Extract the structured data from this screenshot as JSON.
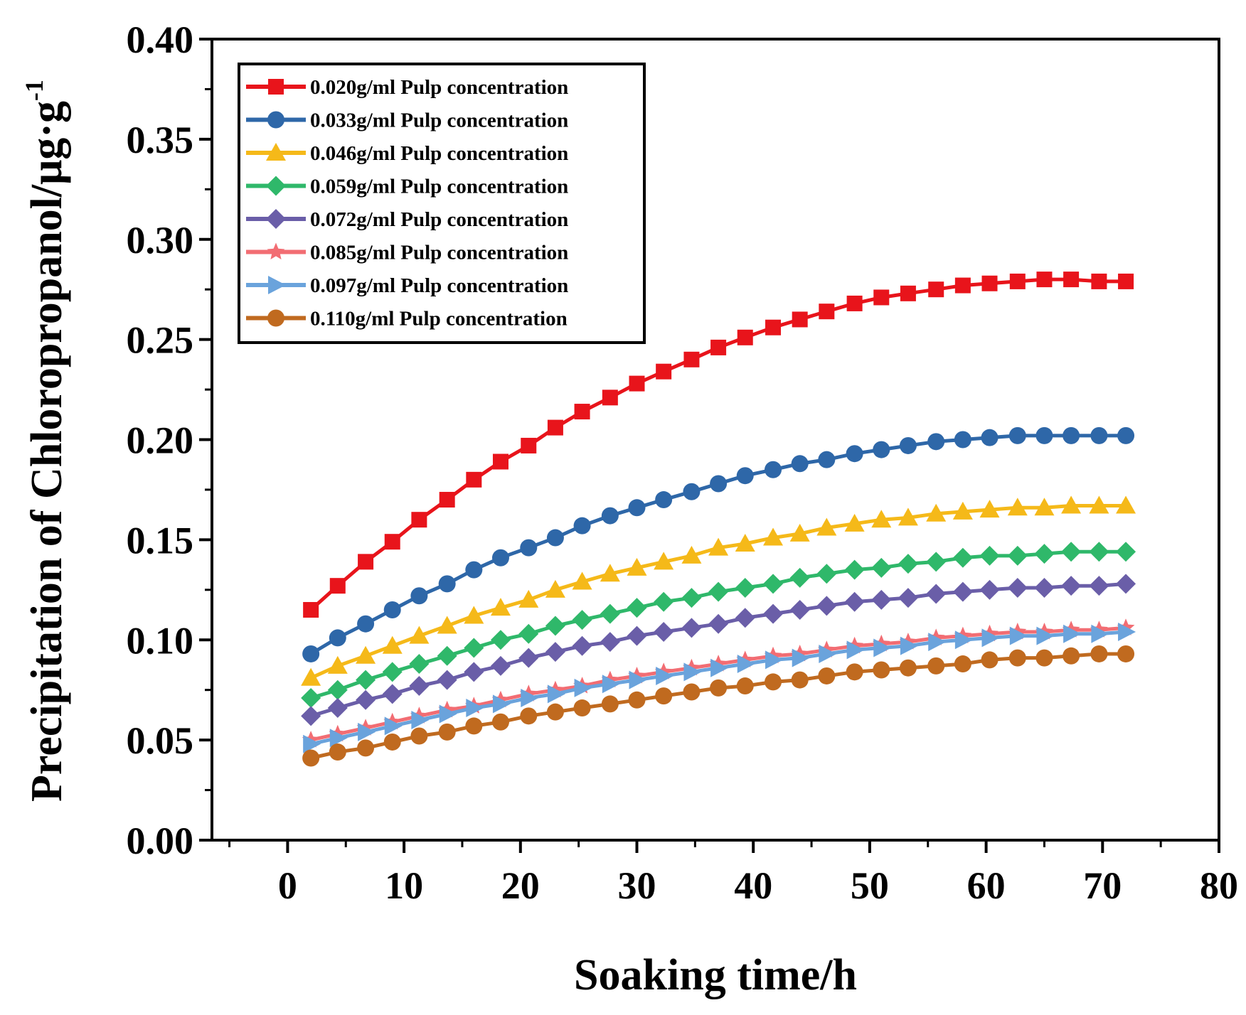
{
  "chart_data": {
    "type": "line",
    "title": "",
    "xlabel": "Soaking time/h",
    "ylabel": "Precipitation of Chloropropanol/μg·g",
    "ylabel_superscript": "-1",
    "xlim": [
      -6.5,
      80
    ],
    "ylim": [
      0,
      0.4
    ],
    "xticks": [
      "0",
      "10",
      "20",
      "30",
      "40",
      "50",
      "60",
      "70",
      "80"
    ],
    "yticks": [
      "0.00",
      "0.05",
      "0.10",
      "0.15",
      "0.20",
      "0.25",
      "0.30",
      "0.35",
      "0.40"
    ],
    "grid": false,
    "legend_position": "top-left",
    "x": [
      2,
      4.3,
      6.7,
      9,
      11.3,
      13.7,
      16,
      18.3,
      20.7,
      23,
      25.3,
      27.7,
      30,
      32.3,
      34.7,
      37,
      39.3,
      41.7,
      44,
      46.3,
      48.7,
      51,
      53.3,
      55.7,
      58,
      60.3,
      62.7,
      65,
      67.3,
      69.7,
      72
    ],
    "series": [
      {
        "name": "0.020g/ml Pulp concentration",
        "color": "#e8141b",
        "marker": "square",
        "values": [
          0.115,
          0.127,
          0.139,
          0.149,
          0.16,
          0.17,
          0.18,
          0.189,
          0.197,
          0.206,
          0.214,
          0.221,
          0.228,
          0.234,
          0.24,
          0.246,
          0.251,
          0.256,
          0.26,
          0.264,
          0.268,
          0.271,
          0.273,
          0.275,
          0.277,
          0.278,
          0.279,
          0.28,
          0.28,
          0.279,
          0.279
        ]
      },
      {
        "name": "0.033g/ml Pulp concentration",
        "color": "#2e67a8",
        "marker": "circle",
        "values": [
          0.093,
          0.101,
          0.108,
          0.115,
          0.122,
          0.128,
          0.135,
          0.141,
          0.146,
          0.151,
          0.157,
          0.162,
          0.166,
          0.17,
          0.174,
          0.178,
          0.182,
          0.185,
          0.188,
          0.19,
          0.193,
          0.195,
          0.197,
          0.199,
          0.2,
          0.201,
          0.202,
          0.202,
          0.202,
          0.202,
          0.202
        ]
      },
      {
        "name": "0.046g/ml Pulp concentration",
        "color": "#f5b919",
        "marker": "triangle",
        "values": [
          0.081,
          0.087,
          0.092,
          0.097,
          0.102,
          0.107,
          0.112,
          0.116,
          0.12,
          0.125,
          0.129,
          0.133,
          0.136,
          0.139,
          0.142,
          0.146,
          0.148,
          0.151,
          0.153,
          0.156,
          0.158,
          0.16,
          0.161,
          0.163,
          0.164,
          0.165,
          0.166,
          0.166,
          0.167,
          0.167,
          0.167
        ]
      },
      {
        "name": "0.059g/ml Pulp concentration",
        "color": "#2fb86a",
        "marker": "diamond",
        "values": [
          0.071,
          0.075,
          0.08,
          0.084,
          0.088,
          0.092,
          0.096,
          0.1,
          0.103,
          0.107,
          0.11,
          0.113,
          0.116,
          0.119,
          0.121,
          0.124,
          0.126,
          0.128,
          0.131,
          0.133,
          0.135,
          0.136,
          0.138,
          0.139,
          0.141,
          0.142,
          0.142,
          0.143,
          0.144,
          0.144,
          0.144
        ]
      },
      {
        "name": "0.072g/ml Pulp concentration",
        "color": "#6a5ea8",
        "marker": "diamond",
        "values": [
          0.062,
          0.066,
          0.07,
          0.073,
          0.077,
          0.08,
          0.084,
          0.087,
          0.091,
          0.094,
          0.097,
          0.099,
          0.102,
          0.104,
          0.106,
          0.108,
          0.111,
          0.113,
          0.115,
          0.117,
          0.119,
          0.12,
          0.121,
          0.123,
          0.124,
          0.125,
          0.126,
          0.126,
          0.127,
          0.127,
          0.128
        ]
      },
      {
        "name": "0.085g/ml Pulp concentration",
        "color": "#f26d73",
        "marker": "star",
        "values": [
          0.05,
          0.053,
          0.056,
          0.059,
          0.062,
          0.065,
          0.067,
          0.07,
          0.073,
          0.075,
          0.077,
          0.08,
          0.082,
          0.084,
          0.086,
          0.088,
          0.09,
          0.092,
          0.093,
          0.095,
          0.097,
          0.098,
          0.099,
          0.101,
          0.102,
          0.103,
          0.104,
          0.104,
          0.105,
          0.105,
          0.106
        ]
      },
      {
        "name": "0.097g/ml Pulp concentration",
        "color": "#6aa3dc",
        "marker": "triangle-right",
        "values": [
          0.048,
          0.051,
          0.054,
          0.057,
          0.06,
          0.063,
          0.066,
          0.068,
          0.071,
          0.073,
          0.076,
          0.078,
          0.08,
          0.082,
          0.084,
          0.086,
          0.088,
          0.09,
          0.091,
          0.093,
          0.095,
          0.096,
          0.097,
          0.099,
          0.1,
          0.101,
          0.102,
          0.102,
          0.103,
          0.103,
          0.104
        ]
      },
      {
        "name": "0.110g/ml Pulp concentration",
        "color": "#c06a1f",
        "marker": "circle",
        "values": [
          0.041,
          0.044,
          0.046,
          0.049,
          0.052,
          0.054,
          0.057,
          0.059,
          0.062,
          0.064,
          0.066,
          0.068,
          0.07,
          0.072,
          0.074,
          0.076,
          0.077,
          0.079,
          0.08,
          0.082,
          0.084,
          0.085,
          0.086,
          0.087,
          0.088,
          0.09,
          0.091,
          0.091,
          0.092,
          0.093,
          0.093
        ]
      }
    ]
  }
}
